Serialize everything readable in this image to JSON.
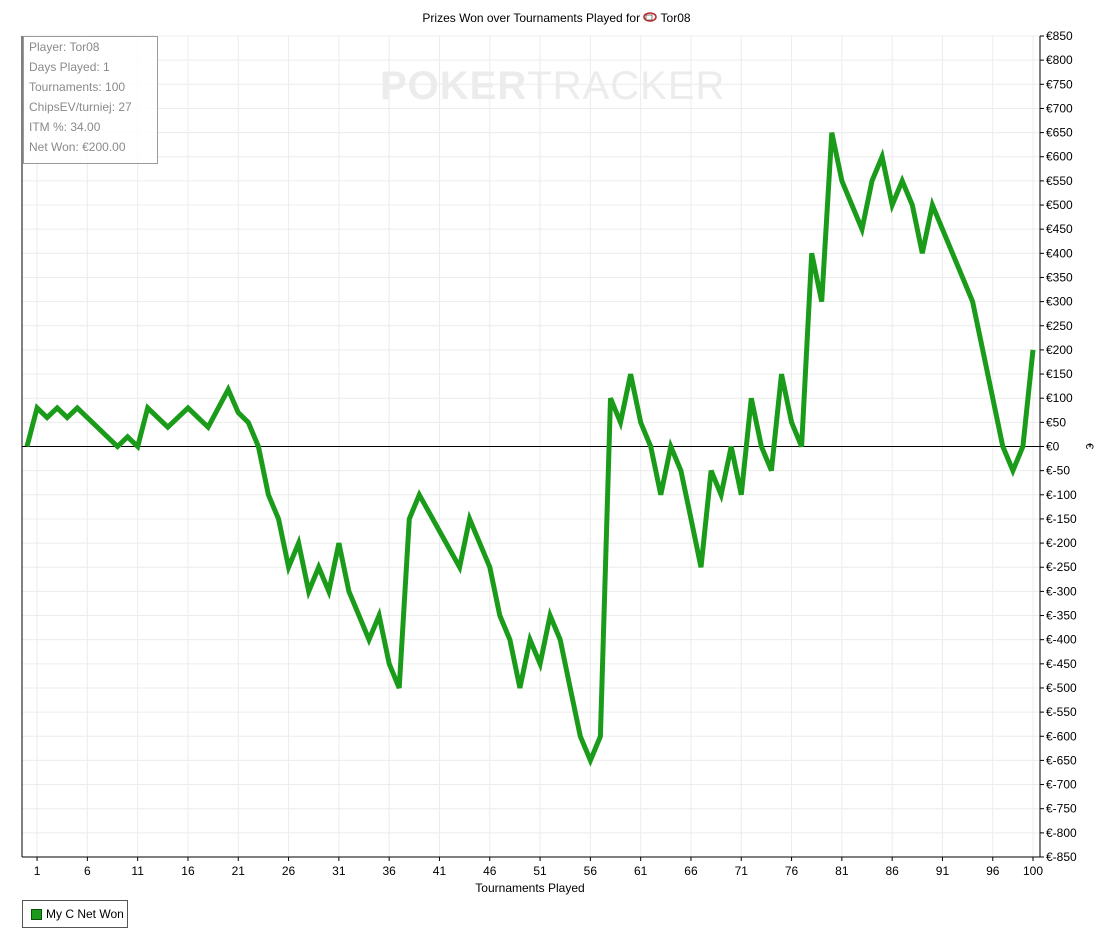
{
  "chart_data": {
    "type": "line",
    "title": "Prizes Won over Tournaments Played for",
    "player_name": "Tor08",
    "xlabel": "Tournaments Played",
    "ylabel": "€",
    "xlim": [
      0,
      100
    ],
    "ylim": [
      -850,
      850
    ],
    "x_ticks": [
      1,
      6,
      11,
      16,
      21,
      26,
      31,
      36,
      41,
      46,
      51,
      56,
      61,
      66,
      71,
      76,
      81,
      86,
      91,
      96,
      100
    ],
    "y_ticks": [
      850,
      800,
      750,
      700,
      650,
      600,
      550,
      500,
      450,
      400,
      350,
      300,
      250,
      200,
      150,
      100,
      50,
      0,
      -50,
      -100,
      -150,
      -200,
      -250,
      -300,
      -350,
      -400,
      -450,
      -500,
      -550,
      -600,
      -650,
      -700,
      -750,
      -800,
      -850
    ],
    "y_tick_labels": [
      "€850",
      "€800",
      "€750",
      "€700",
      "€650",
      "€600",
      "€550",
      "€500",
      "€450",
      "€400",
      "€350",
      "€300",
      "€250",
      "€200",
      "€150",
      "€100",
      "€50",
      "€0",
      "€-50",
      "€-100",
      "€-150",
      "€-200",
      "€-250",
      "€-300",
      "€-350",
      "€-400",
      "€-450",
      "€-500",
      "€-550",
      "€-600",
      "€-650",
      "€-700",
      "€-750",
      "€-800",
      "€-850"
    ],
    "grid": true,
    "legend_position": "bottom-left",
    "series": [
      {
        "name": "My C Net Won",
        "color": "#1a9c1a",
        "x": [
          0,
          1,
          2,
          3,
          4,
          5,
          9,
          10,
          11,
          12,
          14,
          16,
          18,
          20,
          21,
          22,
          23,
          24,
          25,
          26,
          27,
          28,
          29,
          30,
          31,
          32,
          33,
          34,
          35,
          36,
          37,
          38,
          39,
          43,
          44,
          46,
          47,
          48,
          49,
          50,
          51,
          52,
          53,
          54,
          55,
          56,
          57,
          58,
          59,
          60,
          61,
          62,
          63,
          64,
          65,
          66,
          67,
          68,
          69,
          70,
          71,
          72,
          73,
          74,
          75,
          76,
          77,
          78,
          79,
          80,
          81,
          82,
          83,
          84,
          85,
          86,
          87,
          88,
          89,
          90,
          94,
          95,
          97,
          98,
          99,
          100
        ],
        "y": [
          0,
          80,
          60,
          80,
          60,
          80,
          0,
          20,
          0,
          80,
          40,
          80,
          40,
          118,
          70,
          50,
          0,
          -100,
          -150,
          -250,
          -200,
          -300,
          -250,
          -300,
          -200,
          -300,
          -350,
          -400,
          -350,
          -450,
          -500,
          -150,
          -100,
          -250,
          -150,
          -250,
          -350,
          -400,
          -500,
          -400,
          -450,
          -350,
          -400,
          -500,
          -600,
          -650,
          -600,
          100,
          50,
          150,
          50,
          0,
          -100,
          0,
          -50,
          -150,
          -250,
          -50,
          -100,
          0,
          -100,
          100,
          0,
          -50,
          150,
          50,
          0,
          400,
          300,
          650,
          550,
          500,
          450,
          550,
          600,
          500,
          550,
          500,
          400,
          500,
          300,
          200,
          0,
          -50,
          0,
          200
        ]
      }
    ]
  },
  "stats": {
    "player": "Player: Tor08",
    "days_played": "Days Played: 1",
    "tournaments": "Tournaments: 100",
    "chipsev": "ChipsEV/turniej: 27",
    "itm": "ITM %: 34.00",
    "net_won": "Net Won: €200.00"
  },
  "watermark": {
    "part1": "POKER",
    "part2": "TRACKER"
  },
  "legend": {
    "label": "My C Net Won"
  }
}
